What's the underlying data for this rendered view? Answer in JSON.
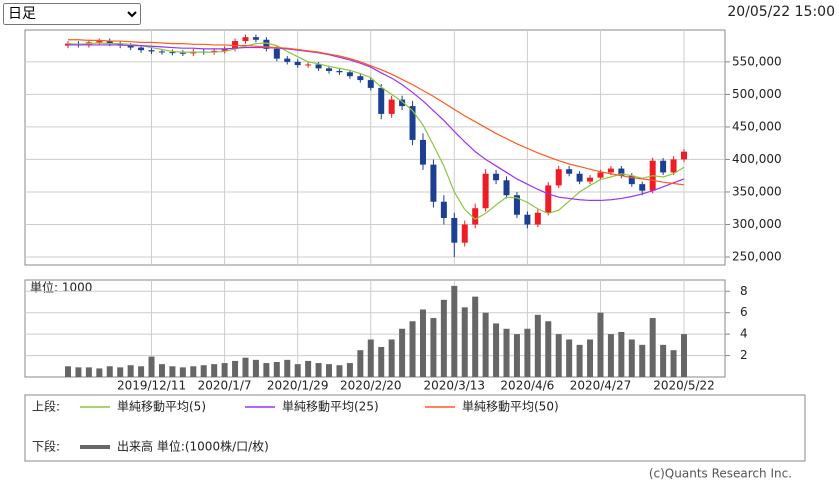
{
  "selector": {
    "value": "日足"
  },
  "timestamp": "20/05/22 15:00",
  "legend": {
    "upper": "上段:",
    "lower": "下段:"
  },
  "copyright": "(c)Quants Research Inc.",
  "chart_data": [
    {
      "type": "candlestick",
      "categories": [
        null,
        null,
        null,
        null,
        null,
        null,
        null,
        null,
        "2019/12/11",
        null,
        null,
        null,
        null,
        null,
        null,
        "2020/1/7",
        null,
        null,
        null,
        null,
        null,
        null,
        "2020/1/29",
        null,
        null,
        null,
        null,
        null,
        null,
        "2020/2/20",
        null,
        null,
        null,
        null,
        null,
        null,
        null,
        "2020/3/13",
        null,
        null,
        null,
        null,
        null,
        null,
        "2020/4/6",
        null,
        null,
        null,
        null,
        null,
        null,
        "2020/4/27",
        null,
        null,
        null,
        null,
        null,
        null,
        null,
        "2020/5/22"
      ],
      "open": [
        575000,
        578000,
        576000,
        580000,
        582000,
        578000,
        575000,
        572000,
        568000,
        566000,
        565000,
        564000,
        563000,
        566000,
        565000,
        567000,
        570000,
        582000,
        588000,
        584000,
        570000,
        555000,
        550000,
        545000,
        546000,
        540000,
        536000,
        534000,
        528000,
        522000,
        510000,
        470000,
        492000,
        482000,
        430000,
        392000,
        335000,
        310000,
        272000,
        300000,
        325000,
        378000,
        368000,
        345000,
        315000,
        300000,
        318000,
        360000,
        385000,
        378000,
        366000,
        372000,
        380000,
        386000,
        375000,
        362000,
        352000,
        398000,
        380000,
        400000
      ],
      "high": [
        582000,
        582000,
        584000,
        586000,
        586000,
        582000,
        579000,
        576000,
        572000,
        570000,
        569000,
        568000,
        570000,
        570000,
        571000,
        574000,
        586000,
        592000,
        592000,
        588000,
        574000,
        559000,
        554000,
        550000,
        550000,
        544000,
        540000,
        538000,
        532000,
        526000,
        516000,
        498000,
        498000,
        490000,
        440000,
        400000,
        345000,
        318000,
        306000,
        332000,
        385000,
        384000,
        374000,
        350000,
        320000,
        323000,
        365000,
        390000,
        390000,
        382000,
        376000,
        384000,
        390000,
        390000,
        379000,
        366000,
        403000,
        402000,
        405000,
        416000
      ],
      "low": [
        571000,
        572000,
        572000,
        576000,
        574000,
        571000,
        568000,
        564000,
        562000,
        561000,
        560000,
        559000,
        559000,
        561000,
        561000,
        563000,
        566000,
        578000,
        580000,
        566000,
        551000,
        546000,
        541000,
        541000,
        536000,
        532000,
        530000,
        524000,
        518000,
        506000,
        462000,
        464000,
        476000,
        422000,
        384000,
        326000,
        300000,
        250000,
        266000,
        294000,
        320000,
        362000,
        340000,
        310000,
        294000,
        296000,
        314000,
        356000,
        374000,
        362000,
        362000,
        368000,
        376000,
        371000,
        358000,
        345000,
        348000,
        376000,
        376000,
        396000
      ],
      "close": [
        578000,
        576000,
        580000,
        582000,
        578000,
        575000,
        572000,
        568000,
        566000,
        565000,
        564000,
        563000,
        566000,
        565000,
        567000,
        570000,
        582000,
        588000,
        584000,
        570000,
        555000,
        550000,
        545000,
        546000,
        540000,
        536000,
        534000,
        528000,
        522000,
        510000,
        470000,
        492000,
        482000,
        430000,
        392000,
        335000,
        310000,
        272000,
        300000,
        325000,
        378000,
        368000,
        345000,
        315000,
        300000,
        318000,
        360000,
        385000,
        378000,
        366000,
        372000,
        380000,
        386000,
        375000,
        362000,
        352000,
        398000,
        380000,
        400000,
        412000
      ],
      "up_color": "#ee1c25",
      "down_color": "#1c3f94",
      "series": [
        {
          "name": "単純移動平均(5)",
          "color": "#8cc63f",
          "values": [
            578000,
            577000,
            578000,
            579000,
            578000,
            578000,
            577000,
            575000,
            572000,
            569000,
            566000,
            565000,
            565000,
            565000,
            565000,
            566000,
            570000,
            574000,
            578000,
            579000,
            575000,
            566000,
            558000,
            550000,
            547000,
            543000,
            540000,
            537000,
            532000,
            526000,
            511000,
            500000,
            489000,
            475000,
            453000,
            422000,
            390000,
            350000,
            323000,
            308000,
            317000,
            330000,
            342000,
            341000,
            334000,
            324000,
            317000,
            322000,
            336000,
            350000,
            360000,
            369000,
            373000,
            378000,
            375000,
            371000,
            375000,
            373000,
            378000,
            388000
          ]
        },
        {
          "name": "単純移動平均(25)",
          "color": "#9b30ff",
          "values": [
            576000,
            576000,
            576000,
            576000,
            576000,
            576000,
            575000,
            575000,
            574000,
            573000,
            572000,
            571000,
            571000,
            570000,
            570000,
            570000,
            571000,
            572000,
            572000,
            572000,
            571000,
            570000,
            568000,
            566000,
            564000,
            561000,
            557000,
            553000,
            548000,
            542000,
            533000,
            525000,
            515000,
            503000,
            490000,
            475000,
            460000,
            443000,
            427000,
            412000,
            400000,
            390000,
            380000,
            370000,
            362000,
            354000,
            347000,
            342000,
            340000,
            338000,
            337000,
            337000,
            338000,
            340000,
            343000,
            347000,
            352000,
            358000,
            364000,
            370000
          ]
        },
        {
          "name": "単純移動平均(50)",
          "color": "#ff5a1f",
          "values": [
            584000,
            584000,
            583000,
            583000,
            582000,
            582000,
            581000,
            580000,
            580000,
            579000,
            578000,
            578000,
            577000,
            577000,
            576000,
            576000,
            575000,
            575000,
            574000,
            573000,
            572000,
            571000,
            569000,
            567000,
            565000,
            562000,
            559000,
            555000,
            550000,
            544000,
            538000,
            531000,
            523000,
            515000,
            506000,
            497000,
            487000,
            477000,
            467000,
            458000,
            449000,
            440000,
            432000,
            424000,
            417000,
            410000,
            404000,
            398000,
            393000,
            389000,
            385000,
            381000,
            378000,
            375000,
            372000,
            370000,
            368000,
            365000,
            363000,
            361000
          ]
        }
      ],
      "ylim": [
        237700,
        599000
      ],
      "yticks": [
        {
          "value": 250000,
          "label": "250,000"
        },
        {
          "value": 300000,
          "label": "300,000"
        },
        {
          "value": 350000,
          "label": "350,000"
        },
        {
          "value": 400000,
          "label": "400,000"
        },
        {
          "value": 450000,
          "label": "450,000"
        },
        {
          "value": 500000,
          "label": "500,000"
        },
        {
          "value": 550000,
          "label": "550,000"
        }
      ],
      "grid": true
    },
    {
      "type": "bar",
      "unit_label": "単位: 1000",
      "series": [
        {
          "name": "出来高 単位:(1000株/口/枚)",
          "color": "#666666",
          "values": [
            1.0,
            0.9,
            0.9,
            0.8,
            1.0,
            0.9,
            1.1,
            1.0,
            1.9,
            1.2,
            1.0,
            0.9,
            1.0,
            1.1,
            1.2,
            1.3,
            1.5,
            1.8,
            1.6,
            1.3,
            1.4,
            1.6,
            1.2,
            1.5,
            1.3,
            1.2,
            1.1,
            1.3,
            2.5,
            3.5,
            2.8,
            3.5,
            4.5,
            5.2,
            6.3,
            5.5,
            7.2,
            8.5,
            6.5,
            7.5,
            6.0,
            5.0,
            4.5,
            4.0,
            4.5,
            5.8,
            5.2,
            4.0,
            3.5,
            3.0,
            3.5,
            6.0,
            4.0,
            4.2,
            3.5,
            3.0,
            5.5,
            3.0,
            2.5,
            4.0
          ]
        }
      ],
      "ylim": [
        0,
        9.05
      ],
      "yticks": [
        2,
        4,
        6,
        8
      ],
      "grid": true
    }
  ]
}
